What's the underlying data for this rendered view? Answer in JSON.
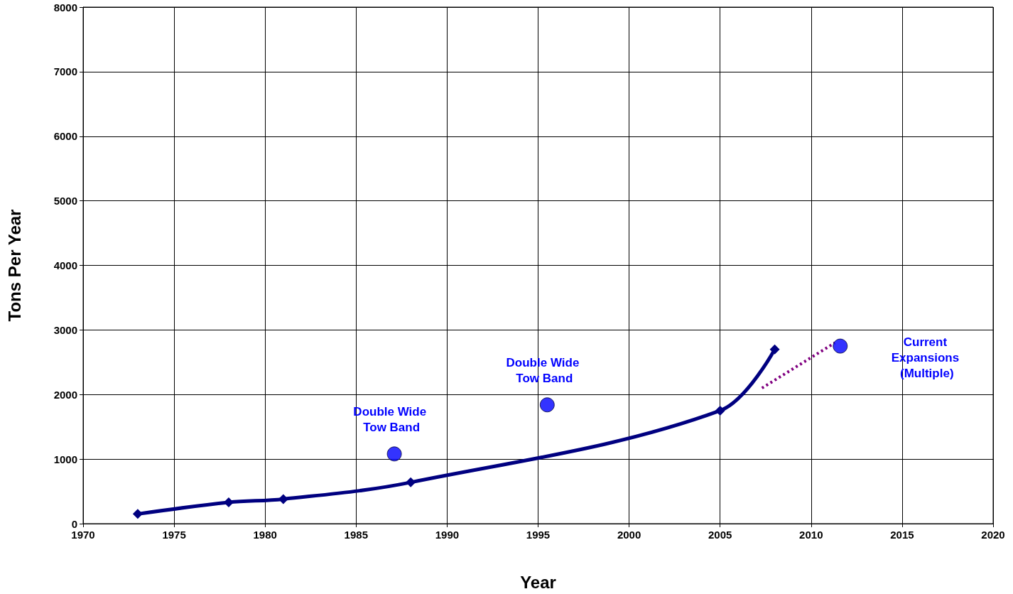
{
  "chart_data": {
    "type": "line",
    "xlabel": "Year",
    "ylabel": "Tons Per Year",
    "series": [
      {
        "color": "#000080",
        "marker": "diamond",
        "line_style": "solid",
        "x": [
          1973,
          1978,
          1981,
          1988,
          2005,
          2008
        ],
        "values": [
          150,
          330,
          380,
          640,
          1750,
          2700
        ]
      },
      {
        "type": "scatter",
        "color": "#0000ff",
        "marker": "circle",
        "x": [
          1987.1,
          1995.5,
          2011.6
        ],
        "values": [
          1080,
          1840,
          2750
        ]
      },
      {
        "type": "line",
        "color": "#800080",
        "marker": "none",
        "line_style": "dotted",
        "x": [
          2007.3,
          2011.3
        ],
        "values": [
          2100,
          2800
        ]
      }
    ],
    "annotations": [
      "Double Wide Tow Band",
      "Double Wide Tow Band",
      "Current Expansions (Multiple)"
    ],
    "xlim": [
      1970,
      2020
    ],
    "xticks": [
      1970,
      1975,
      1980,
      1985,
      1990,
      1995,
      2000,
      2005,
      2010,
      2015,
      2020
    ],
    "ylim": [
      0,
      8000
    ],
    "yticks": [
      0,
      1000,
      2000,
      3000,
      4000,
      5000,
      6000,
      7000,
      8000
    ],
    "grid": true
  }
}
